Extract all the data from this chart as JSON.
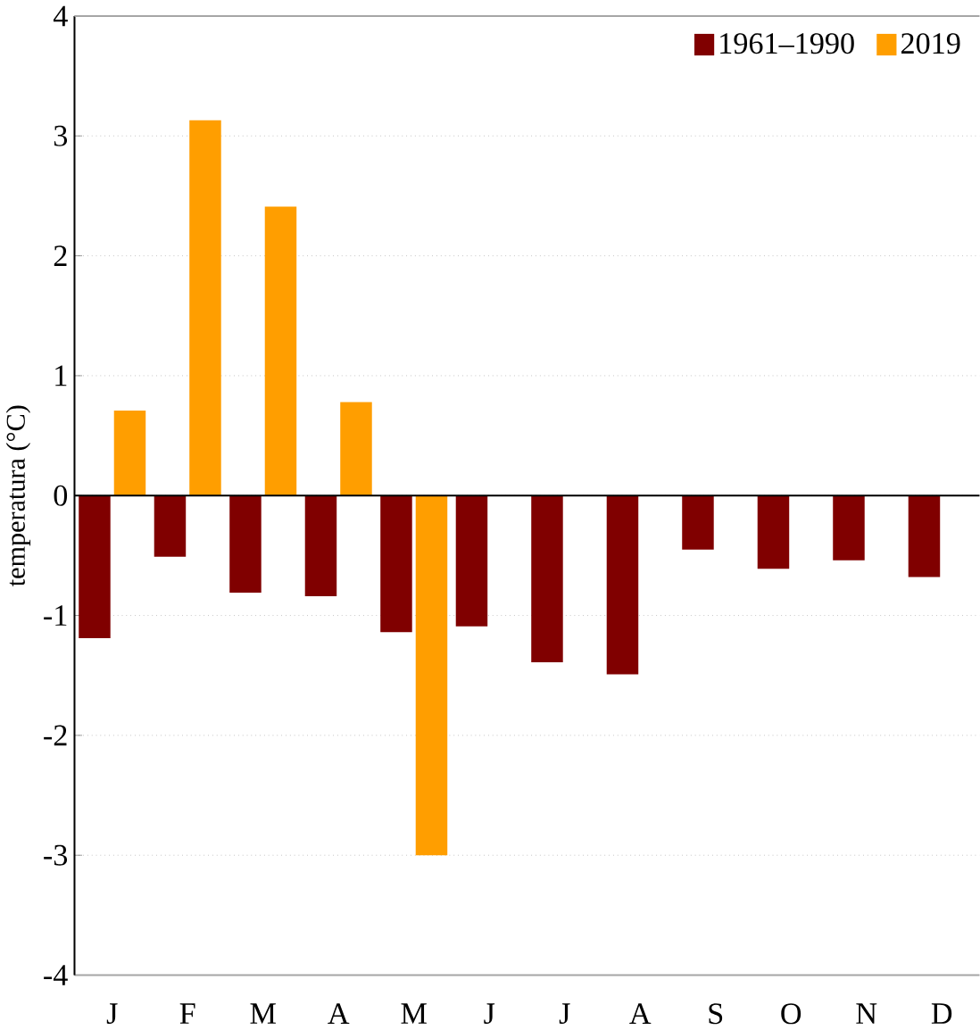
{
  "chart_data": {
    "type": "bar",
    "ylabel": "temperatura (°C)",
    "categories": [
      "J",
      "F",
      "M",
      "A",
      "M",
      "J",
      "J",
      "A",
      "S",
      "O",
      "N",
      "D"
    ],
    "series": [
      {
        "name": "1961–1990",
        "color": "#800000",
        "values": [
          -1.19,
          -0.51,
          -0.81,
          -0.84,
          -1.14,
          -1.09,
          -1.39,
          -1.49,
          -0.45,
          -0.61,
          -0.54,
          -0.68
        ]
      },
      {
        "name": "2019",
        "color": "#ff9e00",
        "values": [
          0.71,
          3.13,
          2.41,
          0.78,
          -3.0,
          null,
          null,
          null,
          null,
          null,
          null,
          null
        ]
      }
    ],
    "ylim": [
      -4,
      4
    ],
    "yticks": [
      -4,
      -3,
      -2,
      -1,
      0,
      1,
      2,
      3,
      4
    ],
    "grid": "y",
    "legend": "top right"
  }
}
